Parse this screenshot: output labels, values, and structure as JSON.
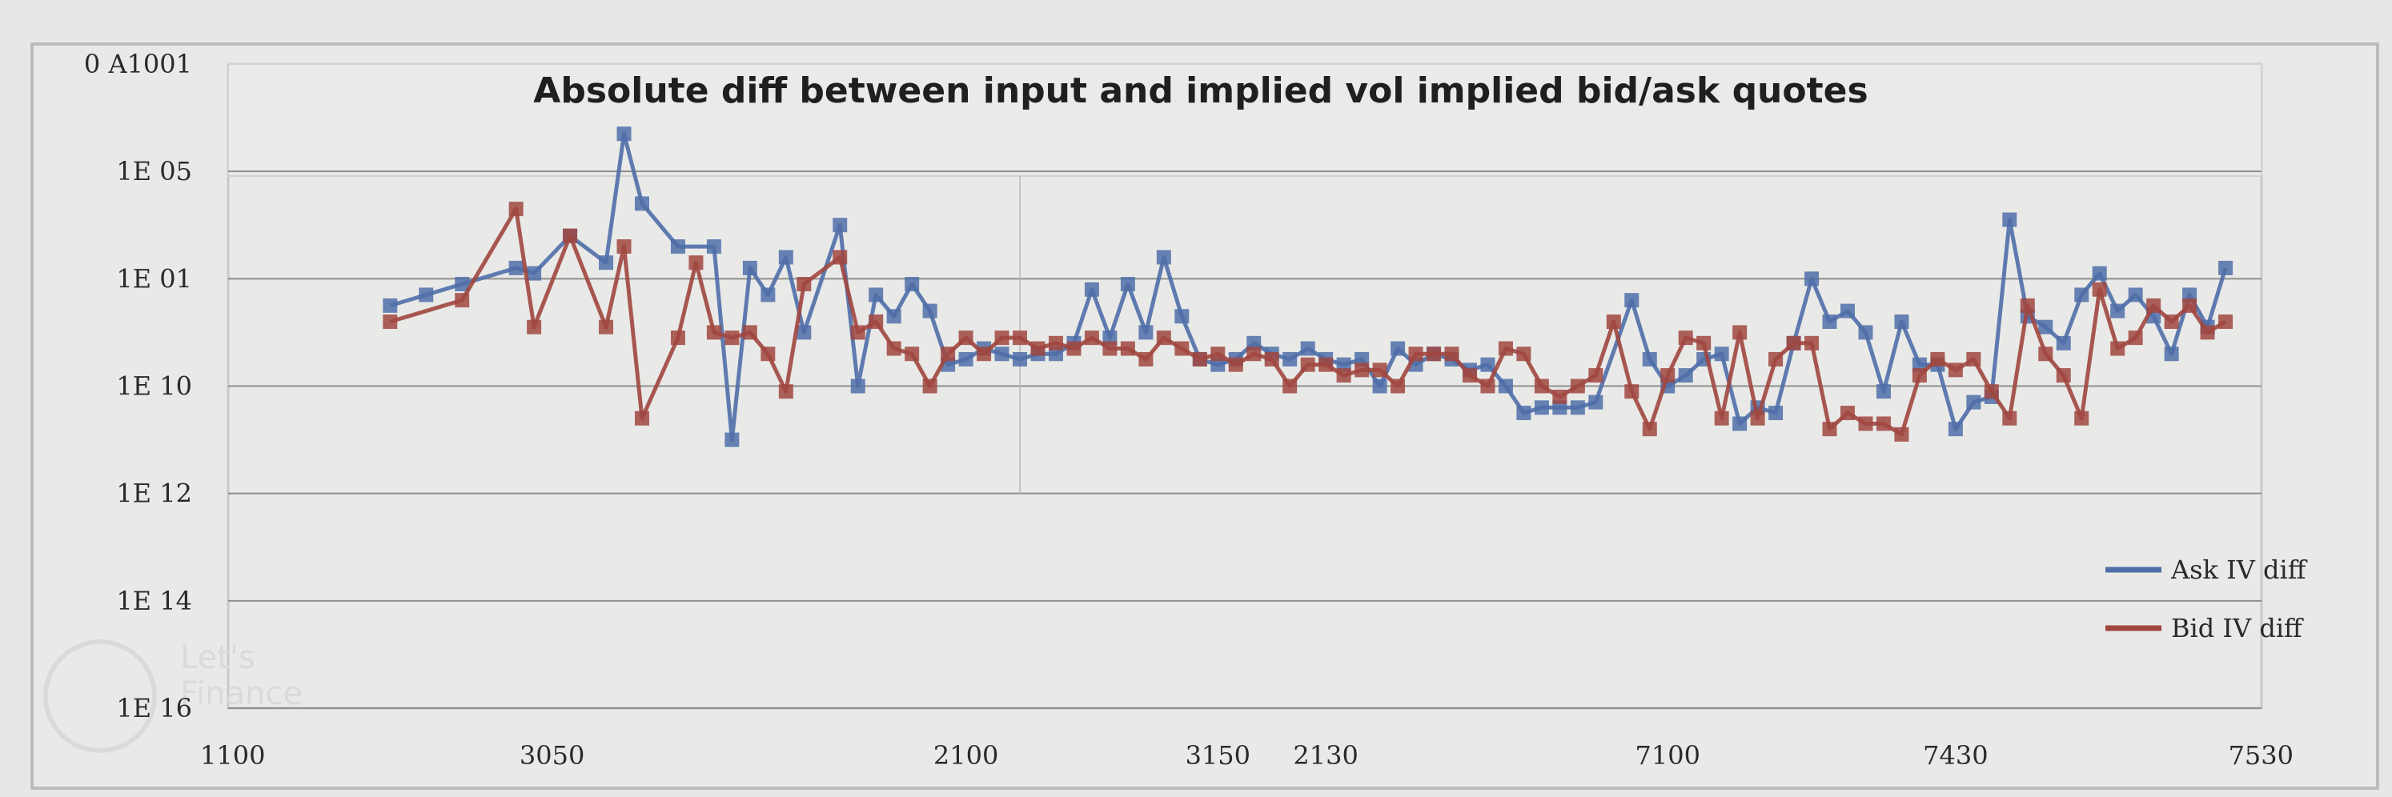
{
  "chart_data": {
    "type": "line",
    "title": "Absolute diff between input and implied vol implied bid/ask quotes",
    "xlabel": "",
    "ylabel": "",
    "grid": true,
    "legend_position": "bottom-right",
    "y_tick_labels": [
      "0 A1001",
      "1E 05",
      "1E 01",
      "1E 10",
      "1E 12",
      "1E 14",
      "1E 16"
    ],
    "x_tick_labels": [
      "1100",
      "3050",
      "2100",
      "3150",
      "2130",
      "7100",
      "7430",
      "7530"
    ],
    "x_tick_values": [
      0,
      18,
      41,
      55,
      61,
      80,
      96,
      113
    ],
    "xlim": [
      0,
      113
    ],
    "ylim": [
      1,
      7
    ],
    "series": [
      {
        "name": "ask IV diff",
        "color": "#4f6ea8",
        "x": [
          9,
          11,
          13,
          16,
          17,
          19,
          21,
          22,
          23,
          25,
          27,
          28,
          29,
          30,
          31,
          32,
          34,
          35,
          36,
          37,
          38,
          39,
          40,
          41,
          42,
          43,
          44,
          45,
          46,
          47,
          48,
          49,
          50,
          51,
          52,
          53,
          54,
          55,
          56,
          57,
          58,
          59,
          60,
          61,
          62,
          63,
          64,
          65,
          66,
          67,
          68,
          69,
          70,
          71,
          72,
          73,
          74,
          75,
          76,
          78,
          79,
          80,
          81,
          82,
          83,
          84,
          85,
          86,
          87,
          88,
          89,
          90,
          91,
          92,
          93,
          94,
          95,
          96,
          97,
          98,
          99,
          100,
          101,
          102,
          103,
          104,
          105,
          106,
          107,
          108,
          109,
          110,
          111
        ],
        "y": [
          4.75,
          4.85,
          4.95,
          5.1,
          5.05,
          5.4,
          5.15,
          6.35,
          5.7,
          5.3,
          5.3,
          3.5,
          5.1,
          4.85,
          5.2,
          4.5,
          5.5,
          4.0,
          4.85,
          4.65,
          4.95,
          4.7,
          4.2,
          4.25,
          4.35,
          4.3,
          4.25,
          4.3,
          4.3,
          4.4,
          4.9,
          4.45,
          4.95,
          4.5,
          5.2,
          4.65,
          4.25,
          4.2,
          4.25,
          4.4,
          4.3,
          4.25,
          4.35,
          4.25,
          4.2,
          4.25,
          4.0,
          4.35,
          4.2,
          4.3,
          4.25,
          4.15,
          4.2,
          4.0,
          3.75,
          3.8,
          3.8,
          3.8,
          3.85,
          4.8,
          4.25,
          4.0,
          4.1,
          4.25,
          4.3,
          3.65,
          3.8,
          3.75,
          4.4,
          5.0,
          4.6,
          4.7,
          4.5,
          3.95,
          4.6,
          4.2,
          4.2,
          3.6,
          3.85,
          3.9,
          5.55,
          4.65,
          4.55,
          4.4,
          4.85,
          5.05,
          4.7,
          4.85,
          4.65,
          4.3,
          4.85,
          4.55,
          5.1
        ]
      },
      {
        "name": "bid IV diff",
        "color": "#a0463f",
        "x": [
          9,
          13,
          16,
          17,
          19,
          21,
          22,
          23,
          25,
          26,
          27,
          28,
          29,
          30,
          31,
          32,
          34,
          35,
          36,
          37,
          38,
          39,
          40,
          41,
          42,
          43,
          44,
          45,
          46,
          47,
          48,
          49,
          50,
          51,
          52,
          53,
          54,
          55,
          56,
          57,
          58,
          59,
          60,
          61,
          62,
          63,
          64,
          65,
          66,
          67,
          68,
          69,
          70,
          71,
          72,
          73,
          74,
          75,
          76,
          77,
          78,
          79,
          80,
          81,
          82,
          83,
          84,
          85,
          86,
          87,
          88,
          89,
          90,
          91,
          92,
          93,
          94,
          95,
          96,
          97,
          98,
          99,
          100,
          101,
          102,
          103,
          104,
          105,
          106,
          107,
          108,
          109,
          110,
          111
        ],
        "y": [
          4.6,
          4.8,
          5.65,
          4.55,
          5.4,
          4.55,
          5.3,
          3.7,
          4.45,
          5.15,
          4.5,
          4.45,
          4.5,
          4.3,
          3.95,
          4.95,
          5.2,
          4.5,
          4.6,
          4.35,
          4.3,
          4.0,
          4.3,
          4.45,
          4.3,
          4.45,
          4.45,
          4.35,
          4.4,
          4.35,
          4.45,
          4.35,
          4.35,
          4.25,
          4.45,
          4.35,
          4.25,
          4.3,
          4.2,
          4.3,
          4.25,
          4.0,
          4.2,
          4.2,
          4.1,
          4.15,
          4.15,
          4.0,
          4.3,
          4.3,
          4.3,
          4.1,
          4.0,
          4.35,
          4.3,
          4.0,
          3.9,
          4.0,
          4.1,
          4.6,
          3.95,
          3.6,
          4.1,
          4.45,
          4.4,
          3.7,
          4.5,
          3.7,
          4.25,
          4.4,
          4.4,
          3.6,
          3.75,
          3.65,
          3.65,
          3.55,
          4.1,
          4.25,
          4.15,
          4.25,
          3.95,
          3.7,
          4.75,
          4.3,
          4.1,
          3.7,
          4.9,
          4.35,
          4.45,
          4.75,
          4.6,
          4.75,
          4.5,
          4.6
        ]
      }
    ]
  },
  "legend": {
    "ask_label": "Ask IV diff",
    "bid_label": "Bid IV diff"
  },
  "watermark": {
    "line1": "Let's",
    "line2": "Finance"
  }
}
